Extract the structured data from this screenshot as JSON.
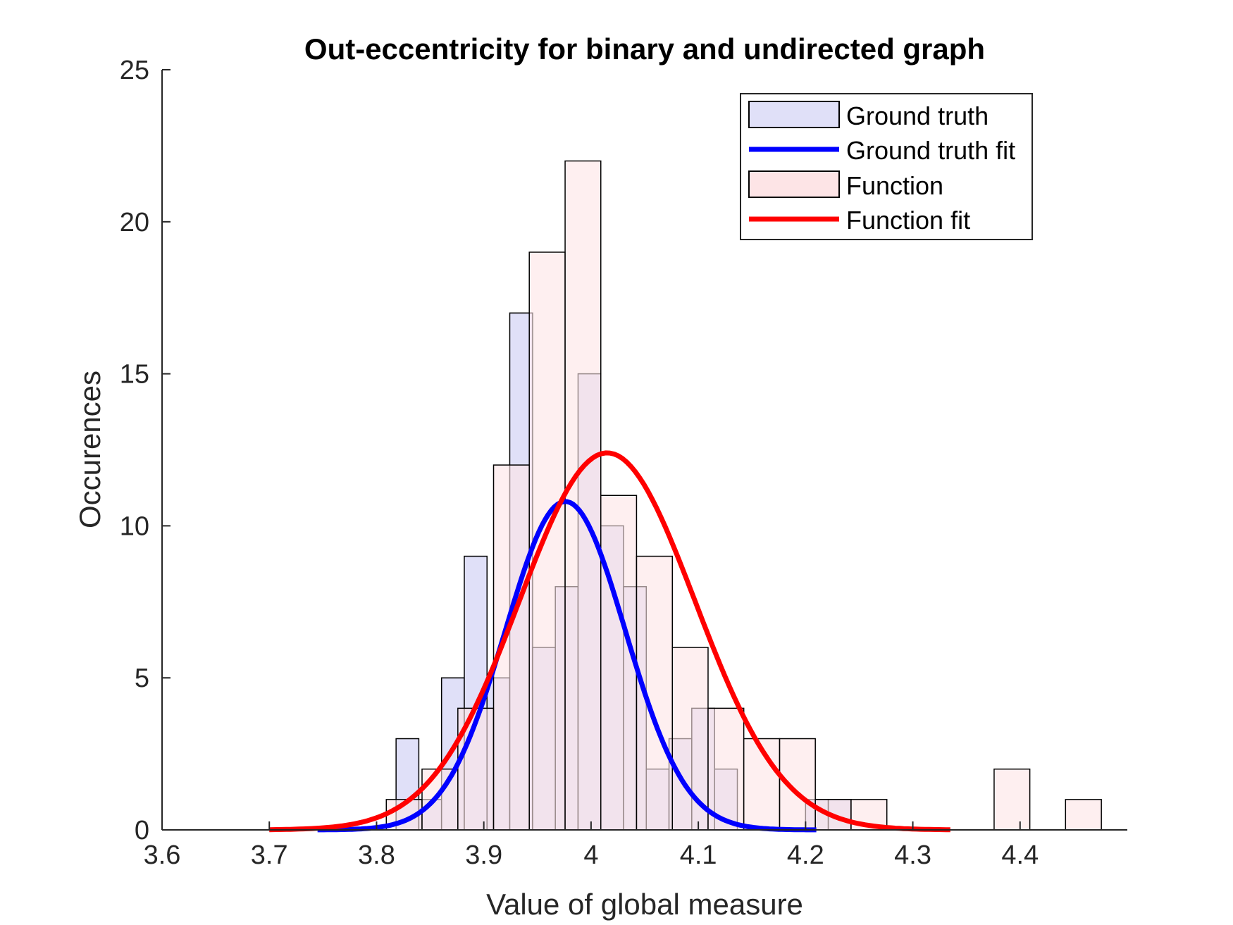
{
  "chart_data": {
    "type": "bar",
    "title": "Out-eccentricity for binary and undirected graph",
    "xlabel": "Value of global measure",
    "ylabel": "Occurences",
    "xlim": [
      3.6,
      4.5
    ],
    "ylim": [
      0,
      25
    ],
    "xticks": [
      3.6,
      3.7,
      3.8,
      3.9,
      4.0,
      4.1,
      4.2,
      4.3,
      4.4
    ],
    "xtick_labels": [
      "3.6",
      "3.7",
      "3.8",
      "3.9",
      "4",
      "4.1",
      "4.2",
      "4.3",
      "4.4"
    ],
    "yticks": [
      0,
      5,
      10,
      15,
      20,
      25
    ],
    "ytick_labels": [
      "0",
      "5",
      "10",
      "15",
      "20",
      "25"
    ],
    "grid": false,
    "legend_position": "top-right",
    "series": [
      {
        "name": "Ground truth",
        "kind": "histogram",
        "color": "#E0E0F8",
        "bin_edges": [
          3.8182,
          3.8394,
          3.8606,
          3.8818,
          3.903,
          3.9242,
          3.9455,
          3.9667,
          3.9879,
          4.0091,
          4.0303,
          4.0515,
          4.0727,
          4.0939,
          4.1152,
          4.1364,
          4.1576,
          4.1788,
          4.2,
          4.2212,
          4.2424
        ],
        "values": [
          3,
          1,
          5,
          9,
          5,
          17,
          6,
          8,
          15,
          10,
          8,
          2,
          3,
          4,
          2,
          0,
          0,
          0,
          1,
          1
        ]
      },
      {
        "name": "Ground truth fit",
        "kind": "normal_fit",
        "color": "#0000FF",
        "mean": 3.976,
        "peak": 10.8,
        "sigma": 0.056,
        "x_range": [
          3.745,
          4.21
        ]
      },
      {
        "name": "Function",
        "kind": "histogram",
        "color": "#FDE4E6",
        "bin_edges": [
          3.8091,
          3.8424,
          3.8758,
          3.9091,
          3.9424,
          3.9758,
          4.0091,
          4.0424,
          4.0758,
          4.1091,
          4.1424,
          4.1758,
          4.2091,
          4.2424,
          4.2758,
          4.3091,
          4.3424,
          4.3758,
          4.4091,
          4.4424,
          4.4758
        ],
        "values": [
          1,
          2,
          4,
          12,
          19,
          22,
          11,
          9,
          6,
          4,
          3,
          3,
          1,
          1,
          0,
          0,
          0,
          2,
          0,
          1
        ]
      },
      {
        "name": "Function fit",
        "kind": "normal_fit",
        "color": "#FF0000",
        "mean": 4.015,
        "peak": 12.4,
        "sigma": 0.082,
        "x_range": [
          3.7,
          4.335
        ]
      }
    ]
  }
}
